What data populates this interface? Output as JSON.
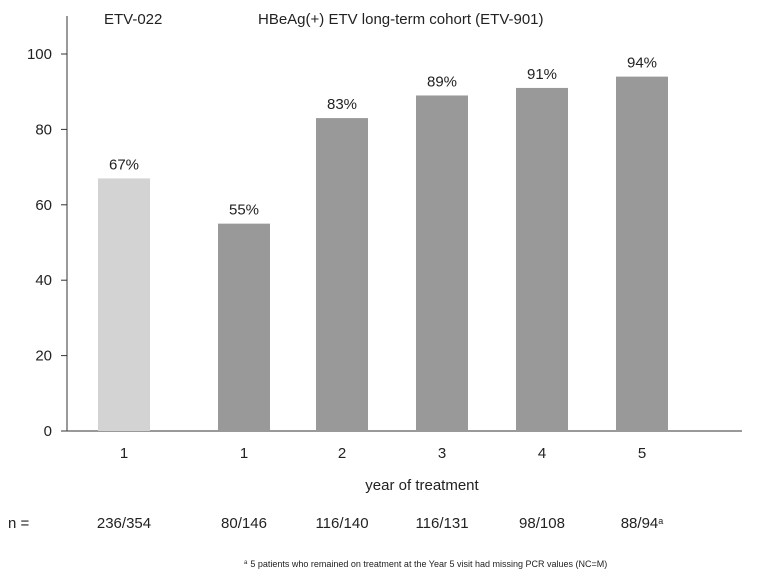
{
  "chart_data": {
    "type": "bar",
    "header_left": "ETV-022",
    "header_right": "HBeAg(+) ETV long-term cohort (ETV-901)",
    "categories": [
      "1",
      "1",
      "2",
      "3",
      "4",
      "5"
    ],
    "values": [
      67,
      55,
      83,
      89,
      91,
      94
    ],
    "data_labels": [
      "67%",
      "55%",
      "83%",
      "89%",
      "91%",
      "94%"
    ],
    "bar_colors": [
      "#d3d3d3",
      "#999999",
      "#999999",
      "#999999",
      "#999999",
      "#999999"
    ],
    "xlabel": "year of treatment",
    "ylabel": "",
    "ylim": [
      0,
      100
    ],
    "yticks": [
      0,
      20,
      40,
      60,
      80,
      100
    ],
    "n_label": "n =",
    "n_values": [
      "236/354",
      "80/146",
      "116/140",
      "116/131",
      "98/108",
      "88/94"
    ],
    "n_last_superscript": "a",
    "footnote_marker": "a",
    "footnote": "5 patients who remained on treatment at the Year 5 visit had missing PCR values (NC=M)"
  }
}
